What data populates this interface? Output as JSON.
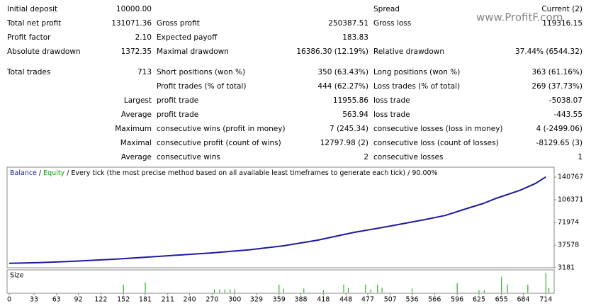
{
  "watermark": "www.ProfitF.com",
  "table": {
    "rows": [
      [
        "Initial deposit",
        "10000.00",
        null,
        null,
        "Spread",
        "Current (2)"
      ],
      [
        "Total net profit",
        "131071.36",
        "Gross profit",
        "250387.51",
        "Gross loss",
        "119316.15"
      ],
      [
        "Profit factor",
        "2.10",
        "Expected payoff",
        "183.83",
        null,
        null
      ],
      [
        "Absolute drawdown",
        "1372.35",
        "Maximal drawdown",
        "16386.30 (12.19%)",
        "Relative drawdown",
        "37.44% (6544.32)"
      ],
      [
        "Total trades",
        "713",
        "Short positions (won %)",
        "350 (63.43%)",
        "Long positions (won %)",
        "363 (61.16%)"
      ],
      [
        null,
        null,
        "Profit trades (% of total)",
        "444 (62.27%)",
        "Loss trades (% of total)",
        "269 (37.73%)"
      ],
      [
        "Largest",
        null,
        "profit trade",
        "11955.86",
        "loss trade",
        "-5038.07"
      ],
      [
        "Average",
        null,
        "profit trade",
        "563.94",
        "loss trade",
        "-443.55"
      ],
      [
        "Maximum",
        null,
        "consecutive wins (profit in money)",
        "7 (245.34)",
        "consecutive losses (loss in money)",
        "4 (-2499.06)"
      ],
      [
        "Maximal",
        null,
        "consecutive profit (count of wins)",
        "12797.98 (2)",
        "consecutive loss (count of losses)",
        "-8129.65 (3)"
      ],
      [
        "Average",
        null,
        "consecutive wins",
        "2",
        "consecutive losses",
        "1"
      ]
    ]
  },
  "chart_data": {
    "type": "line",
    "legend": [
      "Balance",
      " / ",
      "Equity",
      " / Every tick (the most precise method based on all available least timeframes to generate each tick) / 90.00%"
    ],
    "legend_colors": [
      "#1c1c9c",
      "#000000",
      "#00a000",
      "#000000"
    ],
    "series": [
      {
        "name": "Balance",
        "color": "#1c1c9c",
        "x": [
          0,
          40,
          80,
          139,
          200,
          270,
          320,
          365,
          410,
          459,
          500,
          553,
          580,
          610,
          630,
          648,
          680,
          700,
          714
        ],
        "values": [
          10000,
          11000,
          12800,
          16100,
          20500,
          25800,
          30500,
          36500,
          45000,
          56900,
          65000,
          76300,
          82500,
          93500,
          100500,
          108500,
          121000,
          131000,
          141071
        ]
      }
    ],
    "xlim": [
      0,
      725
    ],
    "ylim": [
      3181,
      155816
    ],
    "xticks": [
      0,
      33,
      63,
      92,
      122,
      152,
      181,
      211,
      240,
      270,
      300,
      329,
      359,
      388,
      418,
      448,
      477,
      507,
      536,
      566,
      596,
      625,
      655,
      684,
      714
    ],
    "yticks": [
      3181,
      37578,
      71974,
      106371,
      140767
    ],
    "size_label": "Size",
    "size_bars": {
      "color": "#00a000",
      "x": [
        152,
        181,
        273,
        280,
        287,
        294,
        300,
        359,
        365,
        392,
        418,
        445,
        451,
        474,
        481,
        490,
        496,
        536,
        596,
        625,
        632,
        655,
        663,
        690,
        714,
        718
      ],
      "values": [
        10,
        13,
        4,
        4,
        4,
        4,
        4,
        10,
        5,
        5,
        3,
        10,
        6,
        10,
        4,
        10,
        6,
        5,
        12,
        3,
        3,
        20,
        10,
        10,
        25,
        6
      ]
    }
  }
}
